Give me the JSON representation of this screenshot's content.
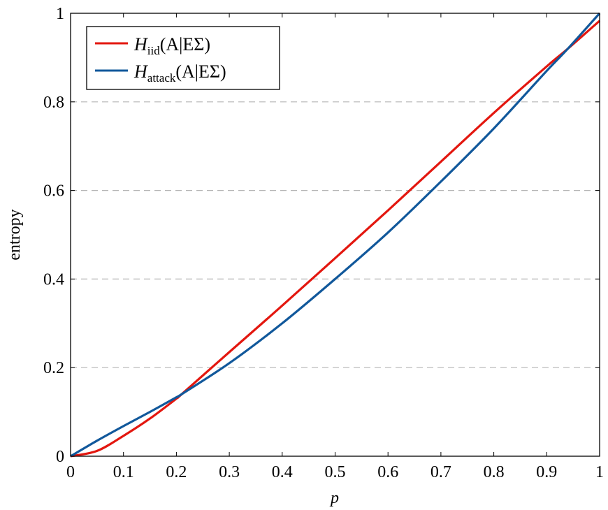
{
  "chart_data": {
    "type": "line",
    "title": "",
    "xlabel": "p",
    "ylabel": "entropy",
    "xlim": [
      0,
      1
    ],
    "ylim": [
      0,
      1
    ],
    "xticks": [
      "0",
      "0.1",
      "0.2",
      "0.3",
      "0.4",
      "0.5",
      "0.6",
      "0.7",
      "0.8",
      "0.9",
      "1"
    ],
    "yticks": [
      "0",
      "0.2",
      "0.4",
      "0.6",
      "0.8",
      "1"
    ],
    "grid": "horizontal dashed",
    "legend_position": "top-left",
    "x": [
      0,
      0.05,
      0.1,
      0.15,
      0.2,
      0.21,
      0.3,
      0.4,
      0.5,
      0.6,
      0.7,
      0.8,
      0.9,
      0.94,
      1
    ],
    "series": [
      {
        "name": "H_iid(A|EΣ)",
        "label_main": "H",
        "label_sub": "iid",
        "label_rest": "(A|EΣ)",
        "color": "#e3170f",
        "values": [
          0,
          0.012,
          0.046,
          0.085,
          0.13,
          0.14,
          0.235,
          0.34,
          0.447,
          0.555,
          0.665,
          0.775,
          0.88,
          0.92,
          0.983
        ]
      },
      {
        "name": "H_attack(A|EΣ)",
        "label_main": "H",
        "label_sub": "attack",
        "label_rest": "(A|EΣ)",
        "color": "#11589b",
        "values": [
          0,
          0.035,
          0.068,
          0.1,
          0.133,
          0.14,
          0.21,
          0.3,
          0.4,
          0.505,
          0.62,
          0.74,
          0.87,
          0.92,
          1.0
        ]
      }
    ]
  }
}
